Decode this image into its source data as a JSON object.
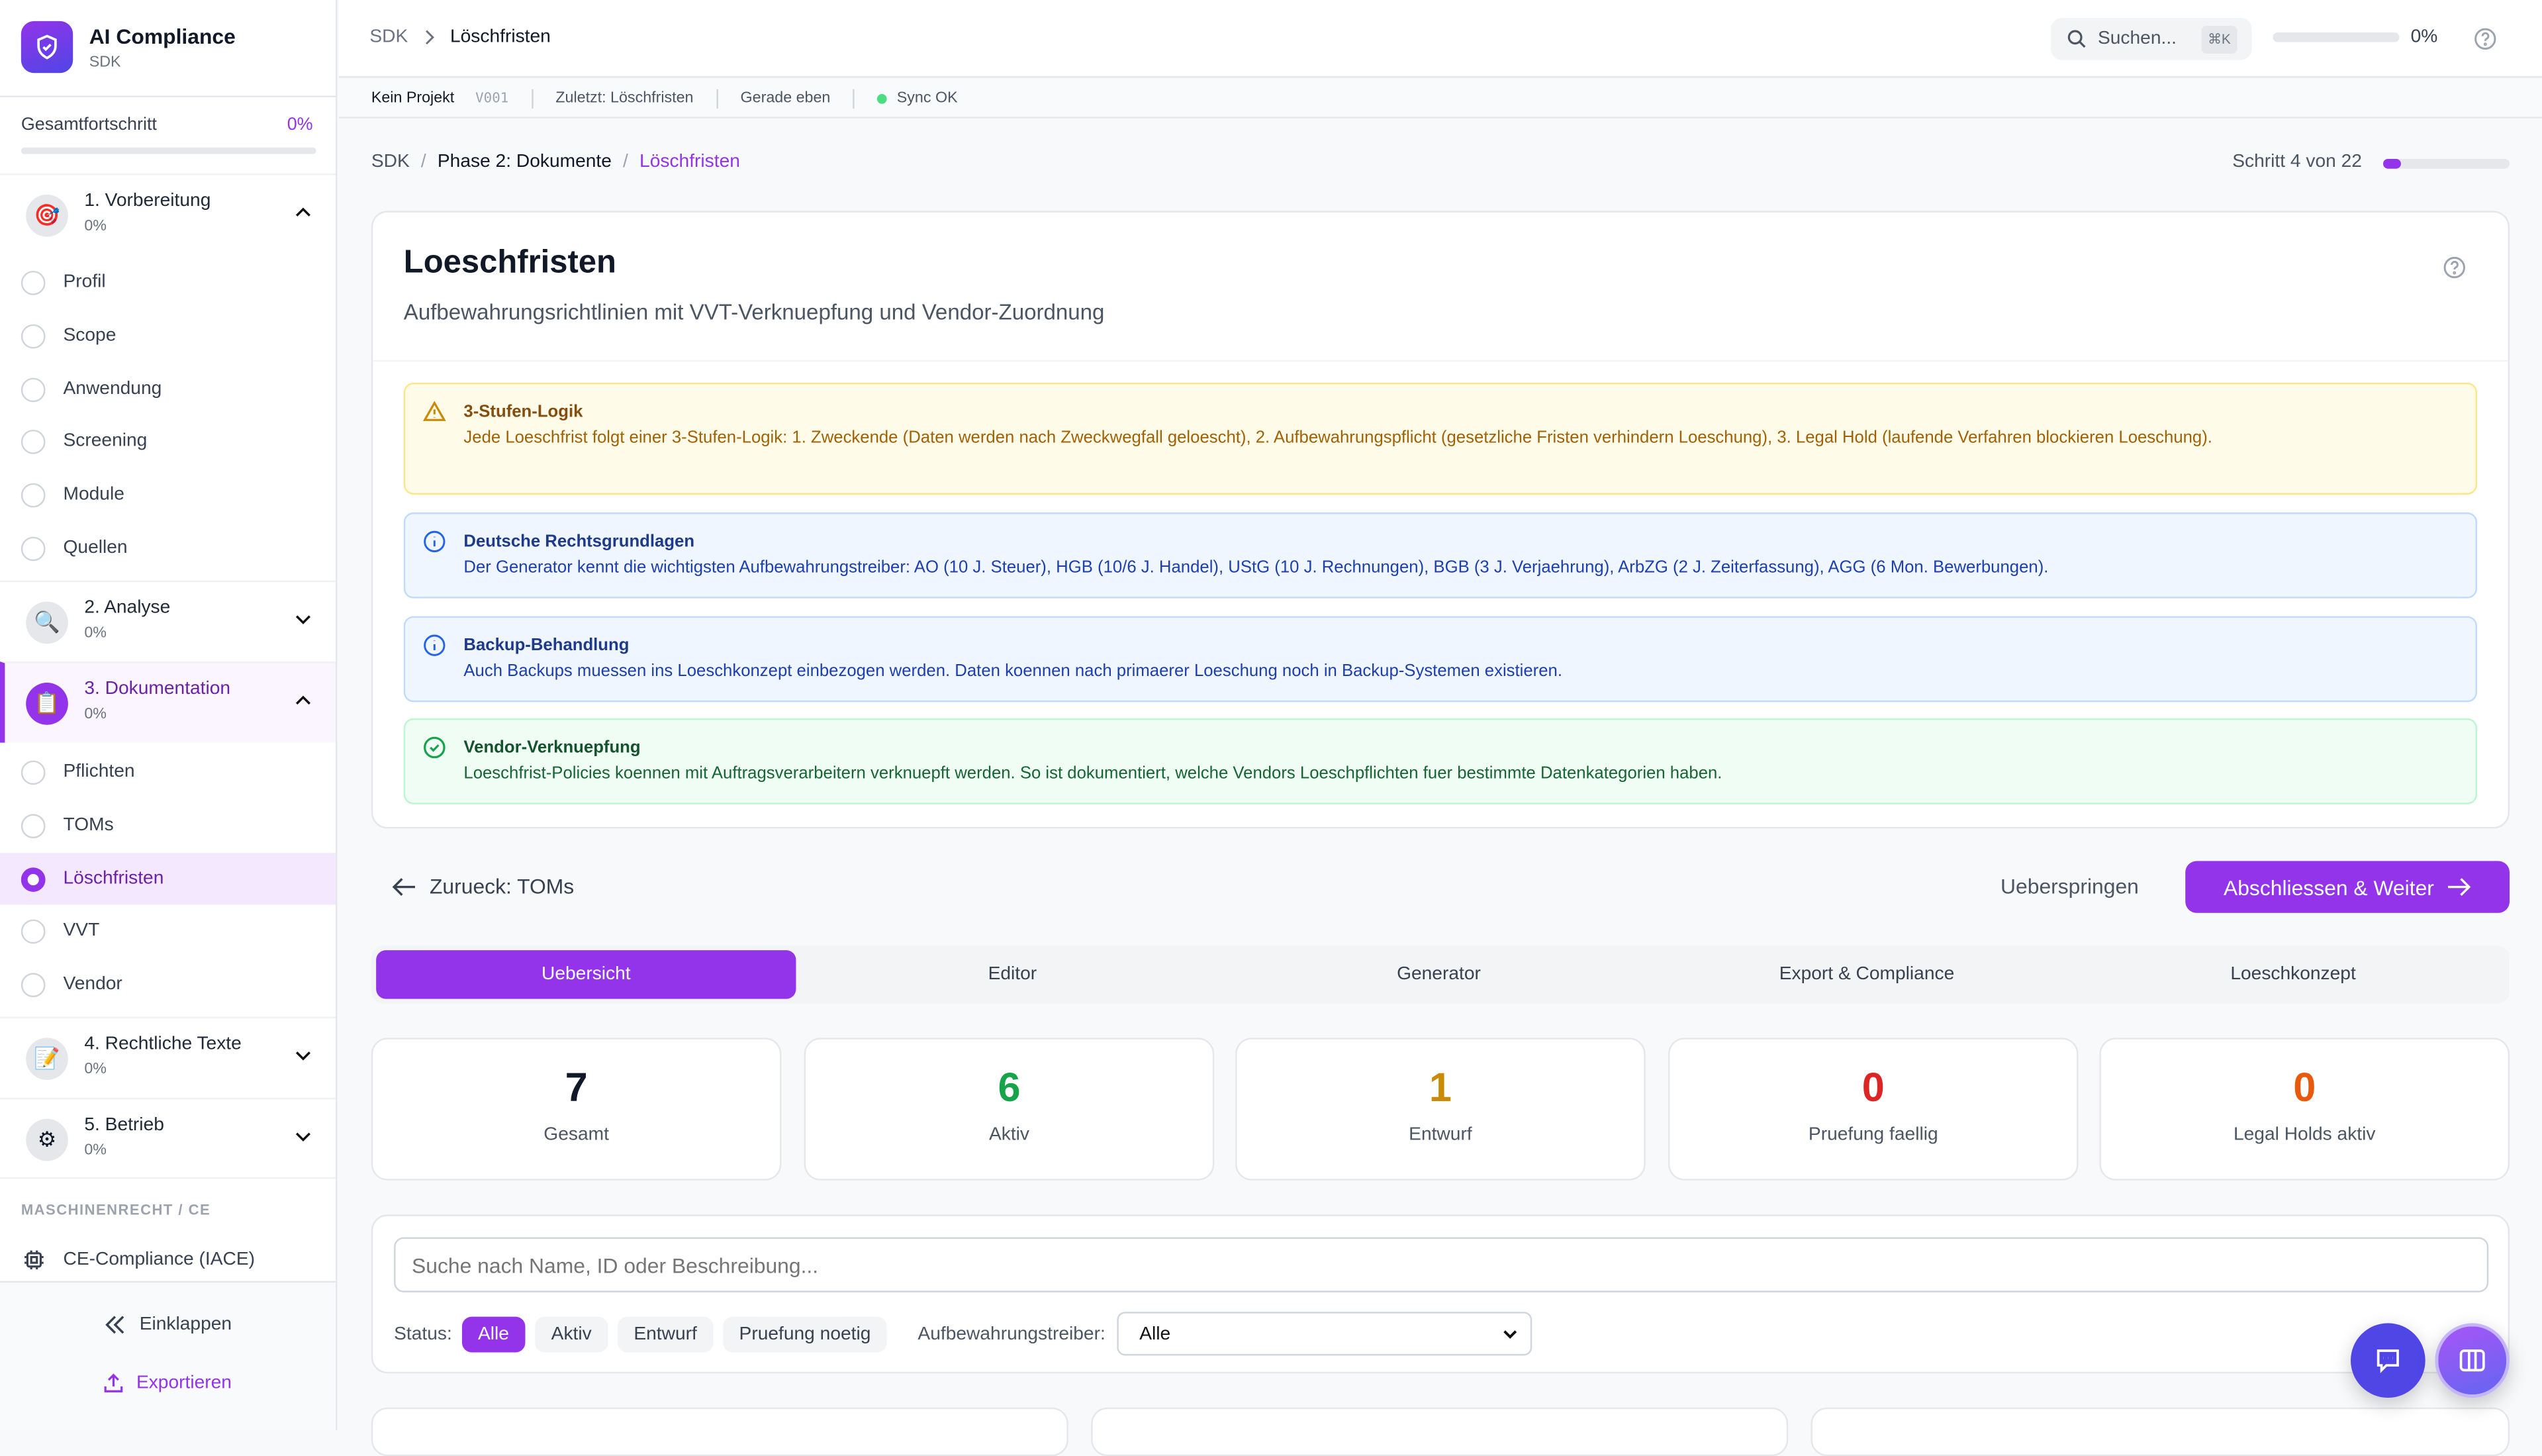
{
  "colors": {
    "accent": "#9333ea",
    "warning": "#fefce8",
    "info": "#eff6ff",
    "success": "#f0fdf4"
  },
  "sidebar": {
    "app_title": "AI Compliance",
    "app_subtitle": "SDK",
    "progress_label": "Gesamtfortschritt",
    "progress_value": "0%",
    "progress_fraction": 0,
    "sections": [
      {
        "label": "1. Vorbereitung",
        "progress": "0%",
        "icon": "target-icon",
        "expanded": true,
        "items": [
          {
            "label": "Profil"
          },
          {
            "label": "Scope"
          },
          {
            "label": "Anwendung"
          },
          {
            "label": "Screening"
          },
          {
            "label": "Module"
          },
          {
            "label": "Quellen"
          }
        ]
      },
      {
        "label": "2. Analyse",
        "progress": "0%",
        "icon": "magnifier-icon",
        "expanded": false
      },
      {
        "label": "3. Dokumentation",
        "progress": "0%",
        "icon": "clipboard-icon",
        "expanded": true,
        "items": [
          {
            "label": "Pflichten"
          },
          {
            "label": "TOMs"
          },
          {
            "label": "Löschfristen",
            "active": true
          },
          {
            "label": "VVT"
          },
          {
            "label": "Vendor"
          }
        ]
      },
      {
        "label": "4. Rechtliche Texte",
        "progress": "0%",
        "icon": "pencil-document-icon",
        "expanded": false
      },
      {
        "label": "5. Betrieb",
        "progress": "0%",
        "icon": "gear-icon",
        "expanded": false
      }
    ],
    "group_label": "MASCHINENRECHT / CE",
    "ce_item": "CE-Compliance (IACE)",
    "collapse_label": "Einklappen",
    "export_label": "Exportieren"
  },
  "header": {
    "breadcrumb_root": "SDK",
    "breadcrumb_current": "Löschfristen",
    "search_placeholder": "Suchen...",
    "search_shortcut": "⌘K",
    "progress_value": "0%",
    "progress_fraction": 0
  },
  "meta_bar": {
    "project": "Kein Projekt",
    "version": "V001",
    "last": "Zuletzt: Löschfristen",
    "time": "Gerade eben",
    "sync": "Sync OK"
  },
  "breadcrumb": [
    "SDK",
    "Phase 2: Dokumente",
    "Löschfristen"
  ],
  "step": {
    "label": "Schritt 4 von 22",
    "current": 4,
    "total": 22
  },
  "page": {
    "title": "Loeschfristen",
    "subtitle": "Aufbewahrungsrichtlinien mit VVT-Verknuepfung und Vendor-Zuordnung"
  },
  "alerts": [
    {
      "type": "warning",
      "title": "3-Stufen-Logik",
      "text": "Jede Loeschfrist folgt einer 3-Stufen-Logik: 1. Zweckende (Daten werden nach Zweckwegfall geloescht), 2. Aufbewahrungspflicht (gesetzliche Fristen verhindern Loeschung), 3. Legal Hold (laufende Verfahren blockieren Loeschung)."
    },
    {
      "type": "info",
      "title": "Deutsche Rechtsgrundlagen",
      "text": "Der Generator kennt die wichtigsten Aufbewahrungstreiber: AO (10 J. Steuer), HGB (10/6 J. Handel), UStG (10 J. Rechnungen), BGB (3 J. Verjaehrung), ArbZG (2 J. Zeiterfassung), AGG (6 Mon. Bewerbungen)."
    },
    {
      "type": "info",
      "title": "Backup-Behandlung",
      "text": "Auch Backups muessen ins Loeschkonzept einbezogen werden. Daten koennen nach primaerer Loeschung noch in Backup-Systemen existieren."
    },
    {
      "type": "success",
      "title": "Vendor-Verknuepfung",
      "text": "Loeschfrist-Policies koennen mit Auftragsverarbeitern verknuepft werden. So ist dokumentiert, welche Vendors Loeschpflichten fuer bestimmte Datenkategorien haben."
    }
  ],
  "nav": {
    "back": "Zurueck: TOMs",
    "skip": "Ueberspringen",
    "next": "Abschliessen & Weiter"
  },
  "tabs": [
    {
      "label": "Uebersicht",
      "active": true
    },
    {
      "label": "Editor"
    },
    {
      "label": "Generator"
    },
    {
      "label": "Export & Compliance"
    },
    {
      "label": "Loeschkonzept"
    }
  ],
  "stats": [
    {
      "value": "7",
      "label": "Gesamt",
      "color": "#111827"
    },
    {
      "value": "6",
      "label": "Aktiv",
      "color": "#16a34a"
    },
    {
      "value": "1",
      "label": "Entwurf",
      "color": "#ca8a04"
    },
    {
      "value": "0",
      "label": "Pruefung faellig",
      "color": "#dc2626"
    },
    {
      "value": "0",
      "label": "Legal Holds aktiv",
      "color": "#ea580c"
    }
  ],
  "filters": {
    "search_placeholder": "Suche nach Name, ID oder Beschreibung...",
    "status_label": "Status:",
    "status_options": [
      {
        "label": "Alle",
        "active": true
      },
      {
        "label": "Aktiv"
      },
      {
        "label": "Entwurf"
      },
      {
        "label": "Pruefung noetig"
      }
    ],
    "driver_label": "Aufbewahrungstreiber:",
    "driver_value": "Alle"
  }
}
